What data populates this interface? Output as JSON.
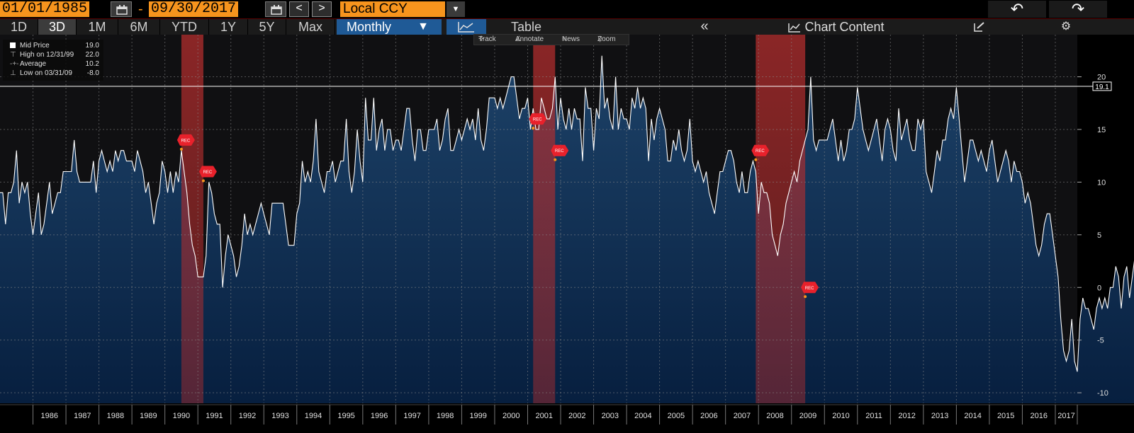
{
  "toolbar": {
    "start_date": "01/01/1985",
    "date_separator": "-",
    "end_date": "09/30/2017",
    "prev_label": "<",
    "next_label": ">",
    "currency": "Local CCY",
    "undo_icon": "undo-arrow-icon",
    "redo_icon": "redo-arrow-icon"
  },
  "tabs": [
    "1D",
    "3D",
    "1M",
    "6M",
    "YTD",
    "1Y",
    "5Y",
    "Max"
  ],
  "selected_tab": "3D",
  "frequency": "Monthly",
  "view_table_label": "Table",
  "collapse_label": "«",
  "chart_content_label": "Chart Content",
  "chart_tools": [
    "Track",
    "Annotate",
    "News",
    "Zoom"
  ],
  "legend": {
    "mid_label": "Mid Price",
    "mid_value": "19.0",
    "high_label": "High on 12/31/99",
    "high_value": "22.0",
    "avg_label": "Average",
    "avg_value": "10.2",
    "low_label": "Low on 03/31/09",
    "low_value": "-8.0"
  },
  "colors": {
    "area_top": "#1d4268",
    "area_bottom": "#071f3f",
    "line": "#ffffff",
    "recession": "#b32d2d",
    "accent": "#f7941d",
    "rec_marker": "#e8212b"
  },
  "chart_data": {
    "type": "area",
    "title": "",
    "xlabel": "",
    "ylabel": "",
    "xlim": [
      "1985-01",
      "2017-09"
    ],
    "ylim": [
      -11,
      24
    ],
    "yticks": [
      -10,
      -5,
      0,
      5,
      10,
      15,
      20
    ],
    "xticks": [
      "1986",
      "1987",
      "1988",
      "1989",
      "1990",
      "1991",
      "1992",
      "1993",
      "1994",
      "1995",
      "1996",
      "1997",
      "1998",
      "1999",
      "2000",
      "2001",
      "2002",
      "2003",
      "2004",
      "2005",
      "2006",
      "2007",
      "2008",
      "2009",
      "2010",
      "2011",
      "2012",
      "2013",
      "2014",
      "2015",
      "2016",
      "2017"
    ],
    "last_value_label": "19.1",
    "last_value": 19.1,
    "grid": true,
    "recessions": [
      {
        "start": "1990-07",
        "end": "1991-03"
      },
      {
        "start": "2001-03",
        "end": "2001-11"
      },
      {
        "start": "2007-12",
        "end": "2009-06"
      }
    ],
    "rec_marker_label": "REC",
    "rec_markers": [
      {
        "date": "1990-07",
        "value": 14
      },
      {
        "date": "1991-03",
        "value": 11
      },
      {
        "date": "2001-03",
        "value": 16
      },
      {
        "date": "2001-11",
        "value": 13
      },
      {
        "date": "2007-12",
        "value": 13
      },
      {
        "date": "2009-06",
        "value": 0
      }
    ],
    "series": [
      {
        "start": "1985-01",
        "frequency": "monthly",
        "values": [
          9,
          9,
          6,
          9,
          9,
          10,
          13,
          8,
          10,
          9,
          10,
          7,
          5,
          7,
          9,
          5,
          6,
          8,
          10,
          7,
          8,
          9,
          9,
          11,
          11,
          11,
          11,
          14,
          11,
          10,
          10,
          10,
          10,
          10,
          12,
          9,
          12,
          13,
          12,
          11,
          12,
          11,
          13,
          12,
          13,
          13,
          12,
          12,
          12,
          11,
          13,
          12,
          11,
          9,
          10,
          8,
          6,
          8,
          9,
          12,
          11,
          9,
          11,
          9,
          11,
          10,
          13,
          11,
          9,
          6,
          4,
          3,
          1,
          1,
          1,
          3,
          10,
          9,
          7,
          6,
          6,
          0,
          3,
          5,
          4,
          3,
          1,
          2,
          4,
          7,
          5,
          6,
          5,
          6,
          7,
          8,
          7,
          6,
          5,
          8,
          8,
          8,
          8,
          8,
          6,
          4,
          4,
          4,
          7,
          8,
          12,
          10,
          11,
          10,
          12,
          16,
          11,
          10,
          9,
          11,
          11,
          12,
          10,
          11,
          12,
          12,
          16,
          11,
          9,
          11,
          15,
          12,
          10,
          18,
          14,
          14,
          18,
          13,
          15,
          16,
          13,
          15,
          15,
          13,
          14,
          14,
          13,
          15,
          17,
          17,
          14,
          12,
          15,
          15,
          13,
          13,
          15,
          15,
          15,
          16,
          13,
          14,
          16,
          17,
          13,
          13,
          14,
          15,
          14,
          15,
          16,
          15,
          16,
          14,
          17,
          14,
          13,
          15,
          18,
          18,
          18,
          17,
          18,
          17,
          18,
          19,
          20,
          20,
          18,
          16,
          17,
          17,
          18,
          15,
          17,
          15,
          15,
          18,
          17,
          16,
          16,
          17,
          20,
          15,
          18,
          16,
          15,
          17,
          15,
          17,
          16,
          16,
          12,
          19,
          17,
          17,
          13,
          17,
          16,
          22,
          17,
          18,
          16,
          15,
          20,
          15,
          17,
          16,
          16,
          15,
          18,
          17,
          19,
          17,
          18,
          17,
          12,
          16,
          14,
          16,
          17,
          16,
          15,
          12,
          12,
          14,
          13,
          15,
          13,
          12,
          13,
          16,
          12,
          11,
          12,
          11,
          10,
          11,
          9,
          8,
          7,
          9,
          11,
          11,
          12,
          13,
          13,
          12,
          10,
          9,
          11,
          9,
          9,
          11,
          12,
          11,
          7,
          10,
          9,
          9,
          8,
          5,
          4,
          3,
          5,
          6,
          8,
          9,
          10,
          11,
          10,
          12,
          13,
          14,
          15,
          20,
          14,
          13,
          14,
          14,
          14,
          14,
          15,
          16,
          14,
          12,
          14,
          12,
          13,
          15,
          15,
          16,
          19,
          17,
          15,
          14,
          13,
          14,
          15,
          16,
          14,
          12,
          15,
          16,
          15,
          13,
          12,
          17,
          14,
          15,
          16,
          14,
          13,
          13,
          16,
          15,
          16,
          11,
          10,
          9,
          11,
          13,
          12,
          14,
          14,
          16,
          17,
          16,
          19,
          16,
          13,
          10,
          12,
          14,
          14,
          13,
          12,
          13,
          12,
          11,
          13,
          14,
          12,
          10,
          11,
          12,
          13,
          12,
          10,
          12,
          11,
          11,
          10,
          8,
          9,
          8,
          6,
          4,
          3,
          4,
          6,
          7,
          7,
          5,
          3,
          1,
          -3,
          -6,
          -7,
          -6,
          -3,
          -7,
          -8,
          -3,
          -1,
          -2,
          -2,
          -3,
          -4,
          -2,
          -1,
          -2,
          -1,
          -2,
          0,
          0,
          2,
          1,
          -2,
          1,
          2,
          -1,
          1,
          3,
          5,
          4,
          6,
          5,
          4,
          2,
          2,
          1,
          0,
          2,
          3,
          2,
          4,
          3,
          4,
          5,
          7,
          6,
          5,
          3,
          5,
          6,
          4,
          3,
          5,
          7,
          6,
          3,
          6,
          5,
          3,
          2,
          3,
          1,
          4,
          2,
          3,
          5,
          6,
          6,
          6,
          8,
          9,
          8,
          9,
          6,
          7,
          9,
          8,
          11,
          12,
          10,
          11,
          8,
          9,
          10,
          13,
          14,
          12,
          15,
          13,
          14,
          13,
          12,
          12,
          12,
          11,
          12,
          11,
          10,
          13,
          12,
          11,
          12,
          11,
          12,
          11,
          12,
          11,
          15,
          13,
          11,
          12,
          12,
          11,
          10,
          11,
          12,
          11,
          12,
          11,
          10,
          11,
          11,
          10,
          10,
          13,
          16,
          17,
          15,
          16,
          18,
          16,
          15,
          17,
          16,
          17,
          15,
          18,
          17,
          18,
          19,
          19
        ]
      }
    ]
  }
}
